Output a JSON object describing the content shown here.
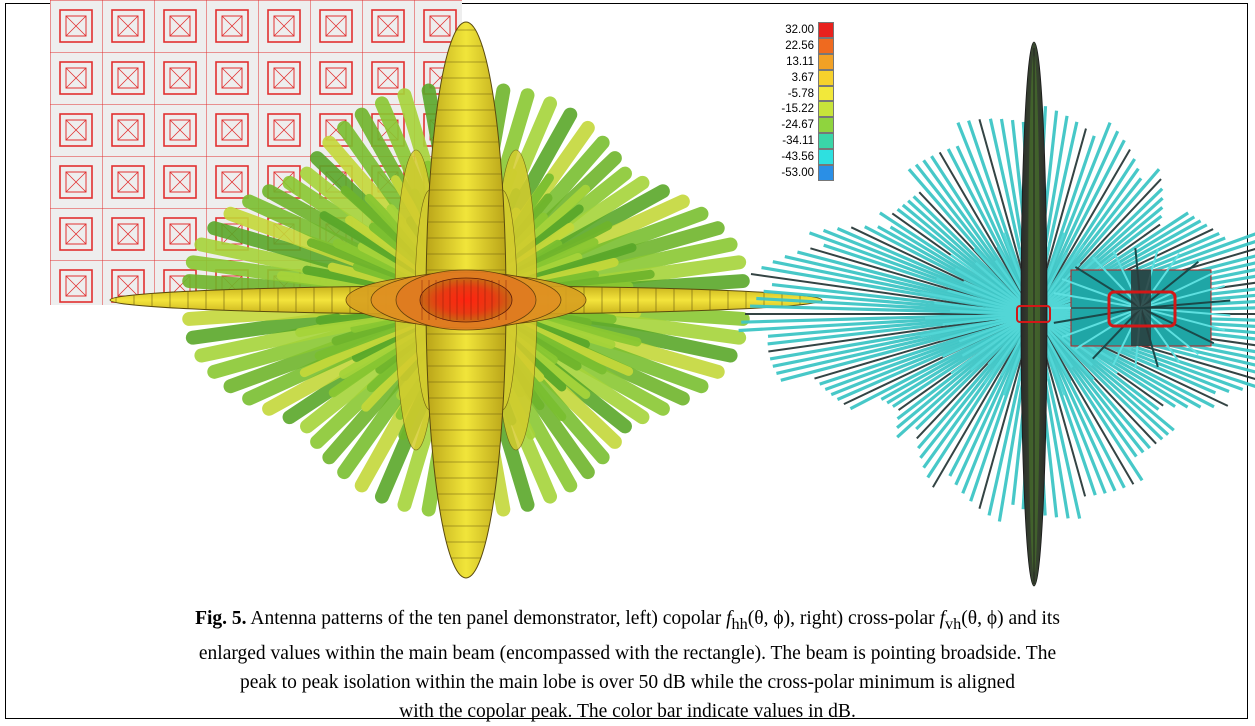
{
  "figure": {
    "left_panel": "copolar",
    "right_panel": "cross-polar"
  },
  "colorbar": {
    "levels": [
      {
        "label": "32.00",
        "color": "#e8211d"
      },
      {
        "label": "22.56",
        "color": "#ef6a1f"
      },
      {
        "label": "13.11",
        "color": "#f2a125"
      },
      {
        "label": "3.67",
        "color": "#f6d12c"
      },
      {
        "label": "-5.78",
        "color": "#f2e83a"
      },
      {
        "label": "-15.22",
        "color": "#c8e43a"
      },
      {
        "label": "-24.67",
        "color": "#8fd43e"
      },
      {
        "label": "-34.11",
        "color": "#3ad6a8"
      },
      {
        "label": "-43.56",
        "color": "#2ee0e0"
      },
      {
        "label": "-53.00",
        "color": "#2a8fe6"
      }
    ]
  },
  "caption": {
    "fig_label": "Fig. 5.",
    "line1_a": " Antenna patterns of the ten panel demonstrator, left) copolar ",
    "fhh": "f",
    "fhh_sub": "hh",
    "fhh_args": "(θ, ϕ), right) cross-polar ",
    "fvh": "f",
    "fvh_sub": "vh",
    "fvh_args": "(θ, ϕ) and its",
    "line2": "enlarged values within the main beam (encompassed with the rectangle).  The beam is pointing broadside. The",
    "line3": "peak to peak isolation within the main lobe is over 50 dB while the cross-polar minimum is aligned",
    "line4": "with the copolar peak.  The color bar indicate values in dB."
  }
}
